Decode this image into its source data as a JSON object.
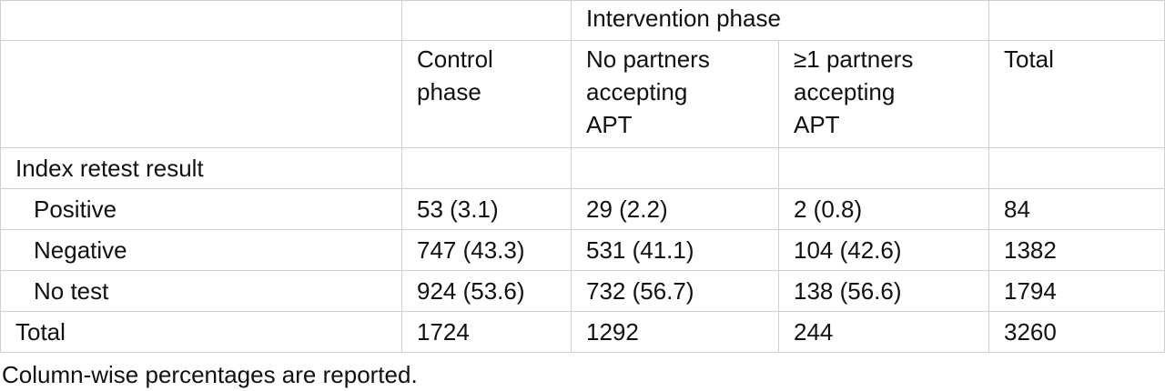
{
  "table": {
    "group_header": "Intervention phase",
    "columns": [
      "Control\nphase",
      "No partners\naccepting\nAPT",
      "≥1 partners\naccepting\nAPT",
      "Total"
    ],
    "section": "Index retest result",
    "rows": [
      [
        "Positive",
        "53 (3.1)",
        "29 (2.2)",
        "2 (0.8)",
        "84"
      ],
      [
        "Negative",
        "747 (43.3)",
        "531 (41.1)",
        "104 (42.6)",
        "1382"
      ],
      [
        "No test",
        "924 (53.6)",
        "732 (56.7)",
        "138 (56.6)",
        "1794"
      ]
    ],
    "total_row": [
      "Total",
      "1724",
      "1292",
      "244",
      "3260"
    ]
  },
  "footnote": "Column-wise percentages are reported."
}
